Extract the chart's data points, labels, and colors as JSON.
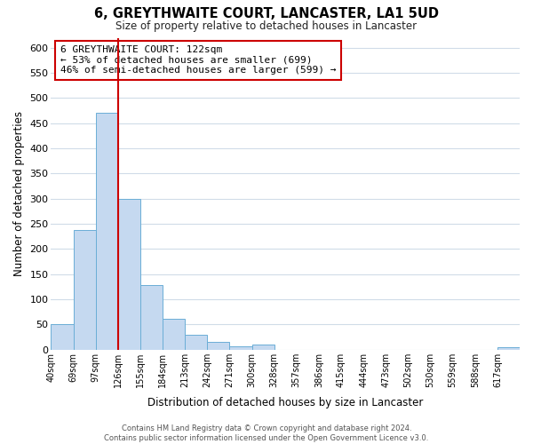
{
  "title": "6, GREYTHWAITE COURT, LANCASTER, LA1 5UD",
  "subtitle": "Size of property relative to detached houses in Lancaster",
  "xlabel": "Distribution of detached houses by size in Lancaster",
  "ylabel": "Number of detached properties",
  "bar_color": "#c5d9f0",
  "bar_edge_color": "#6baed6",
  "vline_color": "#cc0000",
  "vline_x": 3,
  "bin_labels": [
    "40sqm",
    "69sqm",
    "97sqm",
    "126sqm",
    "155sqm",
    "184sqm",
    "213sqm",
    "242sqm",
    "271sqm",
    "300sqm",
    "328sqm",
    "357sqm",
    "386sqm",
    "415sqm",
    "444sqm",
    "473sqm",
    "502sqm",
    "530sqm",
    "559sqm",
    "588sqm",
    "617sqm"
  ],
  "bar_heights": [
    50,
    238,
    470,
    300,
    128,
    62,
    30,
    16,
    6,
    10,
    0,
    0,
    0,
    0,
    0,
    0,
    0,
    0,
    0,
    0,
    5
  ],
  "ylim": [
    0,
    620
  ],
  "yticks": [
    0,
    50,
    100,
    150,
    200,
    250,
    300,
    350,
    400,
    450,
    500,
    550,
    600
  ],
  "annotation_title": "6 GREYTHWAITE COURT: 122sqm",
  "annotation_line1": "← 53% of detached houses are smaller (699)",
  "annotation_line2": "46% of semi-detached houses are larger (599) →",
  "annotation_box_color": "#ffffff",
  "annotation_box_edge": "#cc0000",
  "footer1": "Contains HM Land Registry data © Crown copyright and database right 2024.",
  "footer2": "Contains public sector information licensed under the Open Government Licence v3.0.",
  "bg_color": "#ffffff",
  "grid_color": "#d0dce8"
}
